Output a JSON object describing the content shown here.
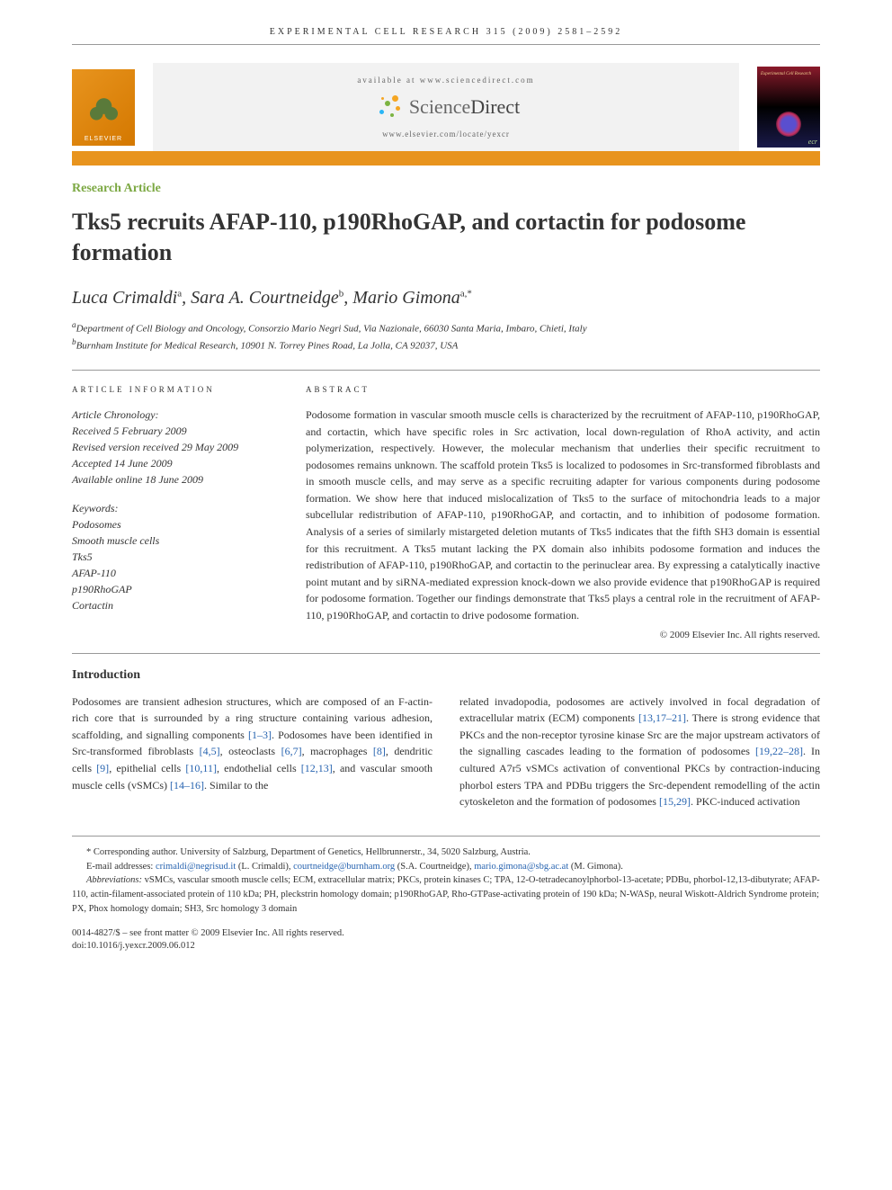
{
  "header": {
    "running_head": "EXPERIMENTAL CELL RESEARCH 315 (2009) 2581–2592"
  },
  "topbar": {
    "elsevier": "ELSEVIER",
    "available_at": "available at www.sciencedirect.com",
    "sd_logo_text_light": "Science",
    "sd_logo_text_bold": "Direct",
    "journal_url": "www.elsevier.com/locate/yexcr",
    "thumb_title": "Experimental Cell Research",
    "thumb_tag": "ecr"
  },
  "article": {
    "type": "Research Article",
    "title": "Tks5 recruits AFAP-110, p190RhoGAP, and cortactin for podosome formation",
    "authors_html": "Luca Crimaldi",
    "authors": [
      {
        "name": "Luca Crimaldi",
        "sup": "a"
      },
      {
        "name": "Sara A. Courtneidge",
        "sup": "b"
      },
      {
        "name": "Mario Gimona",
        "sup": "a,*"
      }
    ],
    "affiliations": [
      "aDepartment of Cell Biology and Oncology, Consorzio Mario Negri Sud, Via Nazionale, 66030 Santa Maria, Imbaro, Chieti, Italy",
      "bBurnham Institute for Medical Research, 10901 N. Torrey Pines Road, La Jolla, CA 92037, USA"
    ]
  },
  "info": {
    "label": "ARTICLE INFORMATION",
    "chronology_label": "Article Chronology:",
    "received": "Received 5 February 2009",
    "revised": "Revised version received 29 May 2009",
    "accepted": "Accepted 14 June 2009",
    "online": "Available online 18 June 2009",
    "keywords_label": "Keywords:",
    "keywords": [
      "Podosomes",
      "Smooth muscle cells",
      "Tks5",
      "AFAP-110",
      "p190RhoGAP",
      "Cortactin"
    ]
  },
  "abstract": {
    "label": "ABSTRACT",
    "text": "Podosome formation in vascular smooth muscle cells is characterized by the recruitment of AFAP-110, p190RhoGAP, and cortactin, which have specific roles in Src activation, local down-regulation of RhoA activity, and actin polymerization, respectively. However, the molecular mechanism that underlies their specific recruitment to podosomes remains unknown. The scaffold protein Tks5 is localized to podosomes in Src-transformed fibroblasts and in smooth muscle cells, and may serve as a specific recruiting adapter for various components during podosome formation. We show here that induced mislocalization of Tks5 to the surface of mitochondria leads to a major subcellular redistribution of AFAP-110, p190RhoGAP, and cortactin, and to inhibition of podosome formation. Analysis of a series of similarly mistargeted deletion mutants of Tks5 indicates that the fifth SH3 domain is essential for this recruitment. A Tks5 mutant lacking the PX domain also inhibits podosome formation and induces the redistribution of AFAP-110, p190RhoGAP, and cortactin to the perinuclear area. By expressing a catalytically inactive point mutant and by siRNA-mediated expression knock-down we also provide evidence that p190RhoGAP is required for podosome formation. Together our findings demonstrate that Tks5 plays a central role in the recruitment of AFAP-110, p190RhoGAP, and cortactin to drive podosome formation.",
    "copyright": "© 2009 Elsevier Inc. All rights reserved."
  },
  "intro": {
    "heading": "Introduction",
    "col1": "Podosomes are transient adhesion structures, which are composed of an F-actin-rich core that is surrounded by a ring structure containing various adhesion, scaffolding, and signalling components [1–3]. Podosomes have been identified in Src-transformed fibroblasts [4,5], osteoclasts [6,7], macrophages [8], dendritic cells [9], epithelial cells [10,11], endothelial cells [12,13], and vascular smooth muscle cells (vSMCs) [14–16]. Similar to the",
    "col2": "related invadopodia, podosomes are actively involved in focal degradation of extracellular matrix (ECM) components [13,17–21]. There is strong evidence that PKCs and the non-receptor tyrosine kinase Src are the major upstream activators of the signalling cascades leading to the formation of podosomes [19,22–28]. In cultured A7r5 vSMCs activation of conventional PKCs by contraction-inducing phorbol esters TPA and PDBu triggers the Src-dependent remodelling of the actin cytoskeleton and the formation of podosomes [15,29]. PKC-induced activation"
  },
  "footnotes": {
    "corresponding": "* Corresponding author. University of Salzburg, Department of Genetics, Hellbrunnerstr., 34, 5020 Salzburg, Austria.",
    "emails_label": "E-mail addresses:",
    "emails": [
      {
        "addr": "crimaldi@negrisud.it",
        "who": "(L. Crimaldi)"
      },
      {
        "addr": "courtneidge@burnham.org",
        "who": "(S.A. Courtneidge)"
      },
      {
        "addr": "mario.gimona@sbg.ac.at",
        "who": "(M. Gimona)."
      }
    ],
    "abbreviations_label": "Abbreviations:",
    "abbreviations": "vSMCs, vascular smooth muscle cells; ECM, extracellular matrix; PKCs, protein kinases C; TPA, 12-O-tetradecanoylphorbol-13-acetate; PDBu, phorbol-12,13-dibutyrate; AFAP-110, actin-filament-associated protein of 110 kDa; PH, pleckstrin homology domain; p190RhoGAP, Rho-GTPase-activating protein of 190 kDa; N-WASp, neural Wiskott-Aldrich Syndrome protein; PX, Phox homology domain; SH3, Src homology 3 domain"
  },
  "doi": {
    "line1": "0014-4827/$ – see front matter © 2009 Elsevier Inc. All rights reserved.",
    "line2": "doi:10.1016/j.yexcr.2009.06.012"
  },
  "colors": {
    "accent_orange": "#e8941e",
    "accent_green": "#7ca843",
    "link_blue": "#2864b0",
    "text": "#333333",
    "rule": "#999999"
  }
}
